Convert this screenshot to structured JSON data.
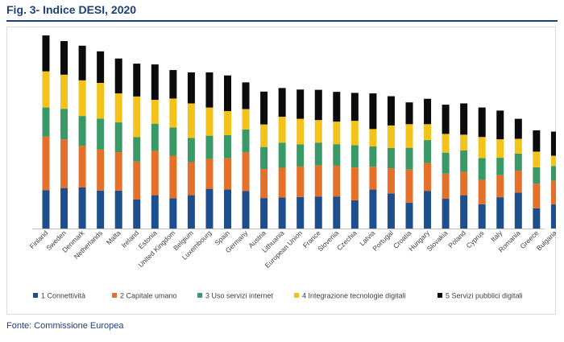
{
  "figure": {
    "title": "Fig. 3- Indice DESI, 2020",
    "source": "Fonte: Commissione Europea"
  },
  "colors": {
    "title": "#1f3f7a",
    "c1": "#1f4e8c",
    "c2": "#e5702a",
    "c3": "#3a9a67",
    "c4": "#f3c21b",
    "c5": "#0b0b0b"
  },
  "chart_data": {
    "type": "bar",
    "stacked": true,
    "orientation": "vertical",
    "grid": false,
    "legend_position": "bottom",
    "ylim": [
      0,
      75
    ],
    "categories": [
      "Finland",
      "Sweden",
      "Denmark",
      "Netherlands",
      "Malta",
      "Ireland",
      "Estonia",
      "United Kingdom",
      "Belgium",
      "Luxembourg",
      "Spain",
      "Germany",
      "Austria",
      "Lithuania",
      "European Union",
      "France",
      "Slovenia",
      "Czechia",
      "Latvia",
      "Portugal",
      "Croatia",
      "Hungary",
      "Slovakia",
      "Poland",
      "Cyprus",
      "Italy",
      "Romania",
      "Greece",
      "Bulgaria"
    ],
    "series": [
      {
        "name": "1 Connettività",
        "color": "#1f4e8c",
        "values": [
          15.0,
          15.8,
          16.0,
          14.8,
          14.8,
          11.3,
          13.0,
          11.8,
          13.0,
          15.5,
          15.2,
          14.6,
          11.9,
          12.1,
          12.3,
          12.5,
          12.5,
          11.0,
          15.2,
          13.7,
          10.1,
          14.7,
          11.6,
          13.0,
          9.5,
          12.2,
          14.0,
          7.9,
          9.4
        ]
      },
      {
        "name": "2 Capitale umano",
        "color": "#e5702a",
        "values": [
          20.9,
          19.0,
          16.3,
          16.0,
          15.0,
          14.8,
          17.3,
          16.6,
          12.9,
          11.6,
          12.2,
          15.1,
          11.3,
          11.6,
          11.9,
          12.1,
          12.0,
          12.8,
          8.9,
          9.8,
          12.9,
          10.9,
          9.8,
          9.1,
          9.5,
          8.6,
          8.6,
          9.6,
          9.2
        ]
      },
      {
        "name": "3 Uso servizi internet",
        "color": "#3a9a67",
        "values": [
          11.3,
          11.9,
          11.6,
          12.1,
          11.6,
          9.6,
          10.6,
          11.0,
          9.4,
          9.1,
          9.0,
          8.9,
          8.6,
          9.8,
          8.6,
          8.9,
          8.4,
          8.7,
          7.9,
          7.9,
          8.5,
          8.9,
          8.2,
          8.4,
          8.5,
          6.8,
          6.6,
          6.4,
          5.8
        ]
      },
      {
        "name": "4 Integrazione tecnologie digitali",
        "color": "#f3c21b",
        "values": [
          14.1,
          13.3,
          13.9,
          13.9,
          11.3,
          15.8,
          9.3,
          11.3,
          13.5,
          11.0,
          9.4,
          8.0,
          8.8,
          10.1,
          10.0,
          8.8,
          8.8,
          9.5,
          6.8,
          8.8,
          9.2,
          6.2,
          7.3,
          6.1,
          8.2,
          7.2,
          5.8,
          6.1,
          4.0
        ]
      },
      {
        "name": "5 Servizi pubblici digitali",
        "color": "#0b0b0b",
        "values": [
          14.0,
          13.1,
          13.5,
          12.3,
          13.6,
          12.8,
          13.8,
          11.1,
          12.1,
          13.7,
          13.9,
          10.4,
          12.8,
          11.2,
          11.4,
          11.8,
          11.6,
          10.9,
          13.9,
          11.4,
          8.5,
          9.9,
          11.4,
          12.2,
          11.5,
          11.2,
          7.8,
          8.3,
          9.4
        ]
      }
    ]
  }
}
